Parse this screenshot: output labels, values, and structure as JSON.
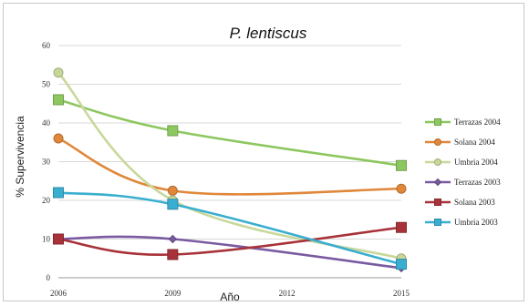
{
  "chart_data": {
    "type": "line",
    "title": "P. lentiscus",
    "xlabel": "Año",
    "ylabel": "% Supervivencia",
    "x": [
      2006,
      2009,
      2015
    ],
    "xticks": [
      "2006",
      "2009",
      "2012",
      "2015"
    ],
    "xlim": [
      2006,
      2015
    ],
    "yticks": [
      "0",
      "10",
      "20",
      "30",
      "40",
      "50",
      "60"
    ],
    "ylim": [
      0,
      60
    ],
    "grid": "horizontal",
    "legend_position": "right",
    "series": [
      {
        "name": "Terrazas 2004",
        "values": [
          46,
          38,
          29
        ],
        "color": "#8dc75f",
        "marker": "square"
      },
      {
        "name": "Solana 2004",
        "values": [
          36,
          22.5,
          23
        ],
        "color": "#e0873a",
        "marker": "circle"
      },
      {
        "name": "Umbria 2004",
        "values": [
          53,
          20,
          5
        ],
        "color": "#c8d89a",
        "marker": "circle"
      },
      {
        "name": "Terrazas 2003",
        "values": [
          10,
          10,
          2.5
        ],
        "color": "#7a5aa0",
        "marker": "diamond"
      },
      {
        "name": "Solana 2003",
        "values": [
          10,
          6,
          13
        ],
        "color": "#a8323a",
        "marker": "square"
      },
      {
        "name": "Umbria 2003",
        "values": [
          22,
          19,
          3.5
        ],
        "color": "#3aaed0",
        "marker": "square"
      }
    ]
  }
}
